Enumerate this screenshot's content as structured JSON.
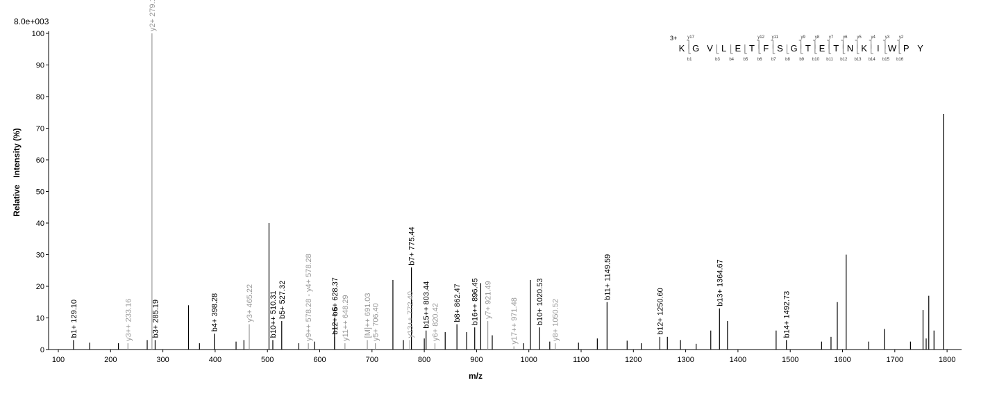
{
  "chart_data": {
    "type": "bar",
    "scale_label": "8.0e+003",
    "xlabel": "m/z",
    "ylabel": "Relative   Intensity (%)",
    "xlim": [
      70,
      1840
    ],
    "ylim": [
      0,
      102
    ],
    "xticks": [
      100,
      200,
      300,
      400,
      500,
      600,
      700,
      800,
      900,
      1000,
      1100,
      1200,
      1300,
      1400,
      1500,
      1600,
      1700,
      1800
    ],
    "yticks": [
      0,
      10,
      20,
      30,
      40,
      50,
      60,
      70,
      80,
      90,
      100
    ],
    "colors": {
      "b_ion": "#000000",
      "y_ion": "#999999",
      "noise": "#000000"
    },
    "peaks": [
      {
        "mz": 129.1,
        "intensity": 3,
        "label": "b1+ 129.10",
        "ion": "b"
      },
      {
        "mz": 233.16,
        "intensity": 2,
        "label": "y3++ 233.16",
        "ion": "y"
      },
      {
        "mz": 279.13,
        "intensity": 100,
        "label": "y2+ 279.13",
        "ion": "y"
      },
      {
        "mz": 285.19,
        "intensity": 3,
        "label": "b3+ 285.19",
        "ion": "b"
      },
      {
        "mz": 398.28,
        "intensity": 5,
        "label": "b4+ 398.28",
        "ion": "b"
      },
      {
        "mz": 465.22,
        "intensity": 8,
        "label": "y3+ 465.22",
        "ion": "y"
      },
      {
        "mz": 510.31,
        "intensity": 3,
        "label": "b10++ 510.31",
        "ion": "b"
      },
      {
        "mz": 527.32,
        "intensity": 9,
        "label": "b5+ 527.32",
        "ion": "b"
      },
      {
        "mz": 578.28,
        "intensity": 2,
        "label": "y9++ 578.28 - y4+ 578.28",
        "ion": "y"
      },
      {
        "mz": 628.37,
        "intensity": 10,
        "label": "b6+ 628.37",
        "ion": "b"
      },
      {
        "mz": 628.5,
        "intensity": 4,
        "label": "b12++ 6",
        "ion": "b"
      },
      {
        "mz": 648.29,
        "intensity": 2,
        "label": "y11++ 648.29",
        "ion": "y"
      },
      {
        "mz": 691.03,
        "intensity": 3,
        "label": "[M]++ 691.03",
        "ion": "y"
      },
      {
        "mz": 706.4,
        "intensity": 2,
        "label": "y5+ 706.40",
        "ion": "y"
      },
      {
        "mz": 772.4,
        "intensity": 3,
        "label": "y13++ 772.40",
        "ion": "y"
      },
      {
        "mz": 775.44,
        "intensity": 26,
        "label": "b7+ 775.44",
        "ion": "b"
      },
      {
        "mz": 803.44,
        "intensity": 6,
        "label": "b15++ 803.44",
        "ion": "b"
      },
      {
        "mz": 820.42,
        "intensity": 2,
        "label": "y6+ 820.42",
        "ion": "y"
      },
      {
        "mz": 862.47,
        "intensity": 8,
        "label": "b8+ 862.47",
        "ion": "b"
      },
      {
        "mz": 896.45,
        "intensity": 7,
        "label": "b16++ 896.45",
        "ion": "b"
      },
      {
        "mz": 921.49,
        "intensity": 9,
        "label": "y7+ 921.49",
        "ion": "y"
      },
      {
        "mz": 971.48,
        "intensity": 1,
        "label": "y17++ 971.48",
        "ion": "y"
      },
      {
        "mz": 1020.53,
        "intensity": 7,
        "label": "b10+ 1020.53",
        "ion": "b"
      },
      {
        "mz": 1050.52,
        "intensity": 2,
        "label": "y8+ 1050.52",
        "ion": "y"
      },
      {
        "mz": 1149.59,
        "intensity": 15,
        "label": "b11+ 1149.59",
        "ion": "b"
      },
      {
        "mz": 1250.6,
        "intensity": 4,
        "label": "b12+ 1250.60",
        "ion": "b"
      },
      {
        "mz": 1364.67,
        "intensity": 13,
        "label": "b13+ 1364.67",
        "ion": "b"
      },
      {
        "mz": 1492.73,
        "intensity": 3,
        "label": "b14+ 1492.73",
        "ion": "b"
      },
      {
        "mz": 349,
        "intensity": 14,
        "label": "",
        "ion": "n"
      },
      {
        "mz": 503,
        "intensity": 40,
        "label": "",
        "ion": "n"
      },
      {
        "mz": 740,
        "intensity": 22,
        "label": "",
        "ion": "n"
      },
      {
        "mz": 908,
        "intensity": 21,
        "label": "",
        "ion": "n"
      },
      {
        "mz": 1003,
        "intensity": 22,
        "label": "",
        "ion": "n"
      },
      {
        "mz": 1380,
        "intensity": 9,
        "label": "",
        "ion": "n"
      },
      {
        "mz": 1590,
        "intensity": 15,
        "label": "",
        "ion": "n"
      },
      {
        "mz": 1607,
        "intensity": 30,
        "label": "",
        "ion": "n"
      },
      {
        "mz": 1680,
        "intensity": 6.5,
        "label": "",
        "ion": "n"
      },
      {
        "mz": 1754,
        "intensity": 12.5,
        "label": "",
        "ion": "n"
      },
      {
        "mz": 1765,
        "intensity": 17,
        "label": "",
        "ion": "n"
      },
      {
        "mz": 1775,
        "intensity": 6,
        "label": "",
        "ion": "n"
      },
      {
        "mz": 1793,
        "intensity": 74.5,
        "label": "",
        "ion": "n"
      },
      {
        "mz": 1348,
        "intensity": 6,
        "label": "",
        "ion": "n"
      },
      {
        "mz": 1473,
        "intensity": 6,
        "label": "",
        "ion": "n"
      },
      {
        "mz": 1760,
        "intensity": 3.5,
        "label": "",
        "ion": "n"
      },
      {
        "mz": 1578,
        "intensity": 4,
        "label": "",
        "ion": "n"
      },
      {
        "mz": 1650,
        "intensity": 2.5,
        "label": "",
        "ion": "n"
      },
      {
        "mz": 840,
        "intensity": 5.5,
        "label": "",
        "ion": "n"
      },
      {
        "mz": 881,
        "intensity": 5.5,
        "label": "",
        "ion": "n"
      },
      {
        "mz": 930,
        "intensity": 4.5,
        "label": "",
        "ion": "n"
      },
      {
        "mz": 1265,
        "intensity": 4,
        "label": "",
        "ion": "n"
      },
      {
        "mz": 1131,
        "intensity": 3.5,
        "label": "",
        "ion": "n"
      },
      {
        "mz": 1188,
        "intensity": 2.8,
        "label": "",
        "ion": "n"
      },
      {
        "mz": 1290,
        "intensity": 3,
        "label": "",
        "ion": "n"
      },
      {
        "mz": 760,
        "intensity": 3,
        "label": "",
        "ion": "n"
      },
      {
        "mz": 800,
        "intensity": 3.5,
        "label": "",
        "ion": "n"
      },
      {
        "mz": 590,
        "intensity": 2.5,
        "label": "",
        "ion": "n"
      },
      {
        "mz": 560,
        "intensity": 2,
        "label": "",
        "ion": "n"
      },
      {
        "mz": 455,
        "intensity": 3,
        "label": "",
        "ion": "n"
      },
      {
        "mz": 440,
        "intensity": 2.5,
        "label": "",
        "ion": "n"
      },
      {
        "mz": 270,
        "intensity": 3,
        "label": "",
        "ion": "n"
      },
      {
        "mz": 160,
        "intensity": 2.2,
        "label": "",
        "ion": "n"
      },
      {
        "mz": 215,
        "intensity": 2,
        "label": "",
        "ion": "n"
      },
      {
        "mz": 370,
        "intensity": 2,
        "label": "",
        "ion": "n"
      },
      {
        "mz": 1320,
        "intensity": 1.8,
        "label": "",
        "ion": "n"
      },
      {
        "mz": 1215,
        "intensity": 2,
        "label": "",
        "ion": "n"
      },
      {
        "mz": 1095,
        "intensity": 2.2,
        "label": "",
        "ion": "n"
      },
      {
        "mz": 1040,
        "intensity": 2.5,
        "label": "",
        "ion": "n"
      },
      {
        "mz": 990,
        "intensity": 2,
        "label": "",
        "ion": "n"
      },
      {
        "mz": 1560,
        "intensity": 2.5,
        "label": "",
        "ion": "n"
      },
      {
        "mz": 1730,
        "intensity": 2.5,
        "label": "",
        "ion": "n"
      }
    ],
    "sequence": {
      "charge": "3+",
      "residues": [
        "K",
        "G",
        "V",
        "L",
        "E",
        "T",
        "F",
        "S",
        "G",
        "T",
        "E",
        "T",
        "N",
        "K",
        "I",
        "W",
        "P",
        "Y"
      ],
      "y_ions": [
        {
          "after": 0,
          "label": "y17"
        },
        {
          "after": 5,
          "label": "y12"
        },
        {
          "after": 6,
          "label": "y11"
        },
        {
          "after": 8,
          "label": "y9"
        },
        {
          "after": 9,
          "label": "y8"
        },
        {
          "after": 10,
          "label": "y7"
        },
        {
          "after": 11,
          "label": "y6"
        },
        {
          "after": 12,
          "label": "y5"
        },
        {
          "after": 13,
          "label": "y4"
        },
        {
          "after": 14,
          "label": "y3"
        },
        {
          "after": 15,
          "label": "y2"
        }
      ],
      "b_ions": [
        {
          "after": 0,
          "label": "b1"
        },
        {
          "after": 2,
          "label": "b3"
        },
        {
          "after": 3,
          "label": "b4"
        },
        {
          "after": 4,
          "label": "b5"
        },
        {
          "after": 5,
          "label": "b6"
        },
        {
          "after": 6,
          "label": "b7"
        },
        {
          "after": 7,
          "label": "b8"
        },
        {
          "after": 8,
          "label": "b9"
        },
        {
          "after": 9,
          "label": "b10"
        },
        {
          "after": 10,
          "label": "b11"
        },
        {
          "after": 11,
          "label": "b12"
        },
        {
          "after": 12,
          "label": "b13"
        },
        {
          "after": 13,
          "label": "b14"
        },
        {
          "after": 14,
          "label": "b15"
        },
        {
          "after": 15,
          "label": "b16"
        }
      ]
    }
  }
}
